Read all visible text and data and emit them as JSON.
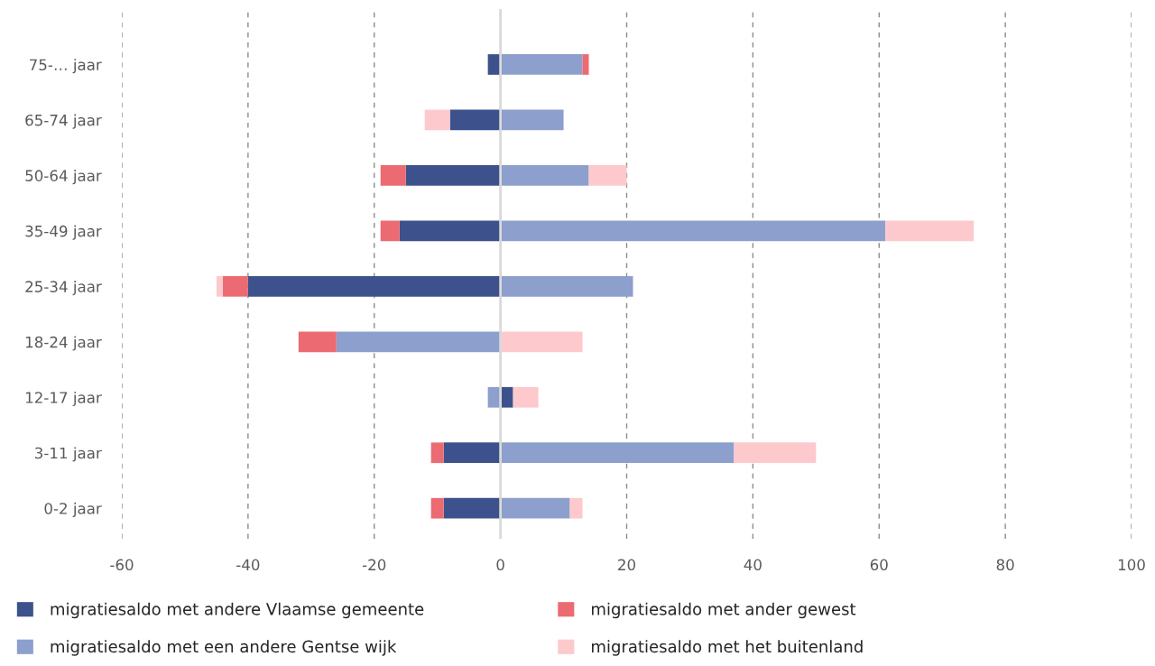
{
  "chart_data": {
    "type": "bar",
    "orientation": "horizontal",
    "stacked": true,
    "categories": [
      "75-… jaar",
      "65-74 jaar",
      "50-64 jaar",
      "35-49 jaar",
      "25-34 jaar",
      "18-24 jaar",
      "12-17 jaar",
      "3-11 jaar",
      "0-2 jaar"
    ],
    "series": [
      {
        "name": "migratiesaldo met andere Vlaamse gemeente",
        "color": "#3d528c",
        "values": [
          -2,
          -8,
          -15,
          -16,
          -40,
          null,
          2,
          -9,
          -9
        ]
      },
      {
        "name": "migratiesaldo met een andere Gentse wijk",
        "color": "#8d9fcc",
        "values": [
          13,
          10,
          14,
          61,
          21,
          -26,
          -2,
          37,
          11
        ]
      },
      {
        "name": "migratiesaldo met ander gewest",
        "color": "#ec6a72",
        "values": [
          1,
          null,
          -4,
          -3,
          -4,
          -6,
          null,
          -2,
          -2
        ]
      },
      {
        "name": "migratiesaldo met het buitenland",
        "color": "#fdc9cc",
        "values": [
          null,
          -4,
          6,
          14,
          -1,
          13,
          4,
          13,
          2
        ]
      }
    ],
    "xlim": [
      -60,
      100
    ],
    "xticks": [
      -60,
      -40,
      -20,
      0,
      20,
      40,
      60,
      80,
      100
    ],
    "grid": "x",
    "legend": "bottom",
    "ref_lines": [
      {
        "axis": "x",
        "value": 0,
        "color": "#d9d9d9",
        "line_style": "solid"
      }
    ]
  }
}
